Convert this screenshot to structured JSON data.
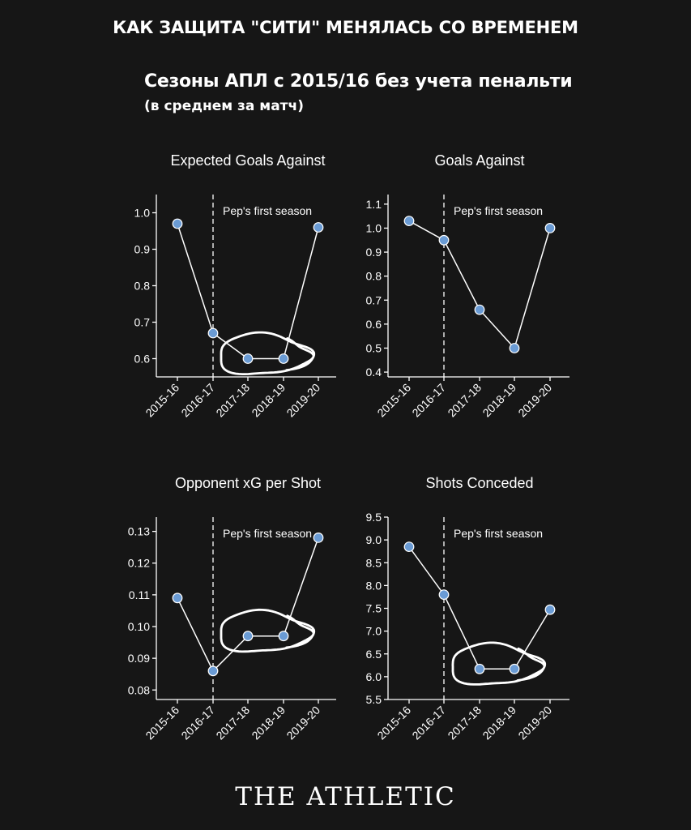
{
  "header": {
    "title": "КАК ЗАЩИТА \"СИТИ\" МЕНЯЛАСЬ СО ВРЕМЕНЕМ",
    "subtitle": "Сезоны АПЛ с 2015/16 без учета пенальти",
    "note": "(в среднем за матч)"
  },
  "logo": "THE ATHLETIC",
  "colors": {
    "background": "#161616",
    "point": "#6a9bd4",
    "line": "#ffffff"
  },
  "chart_data": [
    {
      "type": "line",
      "title": "Expected Goals Against",
      "categories": [
        "2015-16",
        "2016-17",
        "2017-18",
        "2018-19",
        "2019-20"
      ],
      "values": [
        0.97,
        0.67,
        0.6,
        0.6,
        0.96
      ],
      "ylim": [
        0.55,
        1.05
      ],
      "yticks": [
        0.6,
        0.7,
        0.8,
        0.9,
        1.0
      ],
      "ytick_labels": [
        "0.6",
        "0.7",
        "0.8",
        "0.9",
        "1.0"
      ],
      "annotation": "Pep's first season",
      "marker_category": "2016-17",
      "circled": [
        "2017-18",
        "2018-19"
      ],
      "grid": false
    },
    {
      "type": "line",
      "title": "Goals Against",
      "categories": [
        "2015-16",
        "2016-17",
        "2017-18",
        "2018-19",
        "2019-20"
      ],
      "values": [
        1.03,
        0.95,
        0.66,
        0.5,
        1.0
      ],
      "ylim": [
        0.38,
        1.14
      ],
      "yticks": [
        0.4,
        0.5,
        0.6,
        0.7,
        0.8,
        0.9,
        1.0,
        1.1
      ],
      "ytick_labels": [
        "0.4",
        "0.5",
        "0.6",
        "0.7",
        "0.8",
        "0.9",
        "1.0",
        "1.1"
      ],
      "annotation": "Pep's first season",
      "marker_category": "2016-17",
      "circled": [],
      "grid": false
    },
    {
      "type": "line",
      "title": "Opponent xG per Shot",
      "categories": [
        "2015-16",
        "2016-17",
        "2017-18",
        "2018-19",
        "2019-20"
      ],
      "values": [
        0.109,
        0.086,
        0.097,
        0.097,
        0.128
      ],
      "ylim": [
        0.077,
        0.1345
      ],
      "yticks": [
        0.08,
        0.09,
        0.1,
        0.11,
        0.12,
        0.13
      ],
      "ytick_labels": [
        "0.08",
        "0.09",
        "0.10",
        "0.11",
        "0.12",
        "0.13"
      ],
      "annotation": "Pep's first season",
      "marker_category": "2016-17",
      "circled": [
        "2017-18",
        "2018-19"
      ],
      "grid": false
    },
    {
      "type": "line",
      "title": "Shots Conceded",
      "categories": [
        "2015-16",
        "2016-17",
        "2017-18",
        "2018-19",
        "2019-20"
      ],
      "values": [
        8.85,
        7.8,
        6.17,
        6.17,
        7.47
      ],
      "ylim": [
        5.5,
        9.5
      ],
      "yticks": [
        5.5,
        6.0,
        6.5,
        7.0,
        7.5,
        8.0,
        8.5,
        9.0,
        9.5
      ],
      "ytick_labels": [
        "5.5",
        "6.0",
        "6.5",
        "7.0",
        "7.5",
        "8.0",
        "8.5",
        "9.0",
        "9.5"
      ],
      "annotation": "Pep's first season",
      "marker_category": "2016-17",
      "circled": [
        "2017-18",
        "2018-19"
      ],
      "grid": false
    }
  ]
}
